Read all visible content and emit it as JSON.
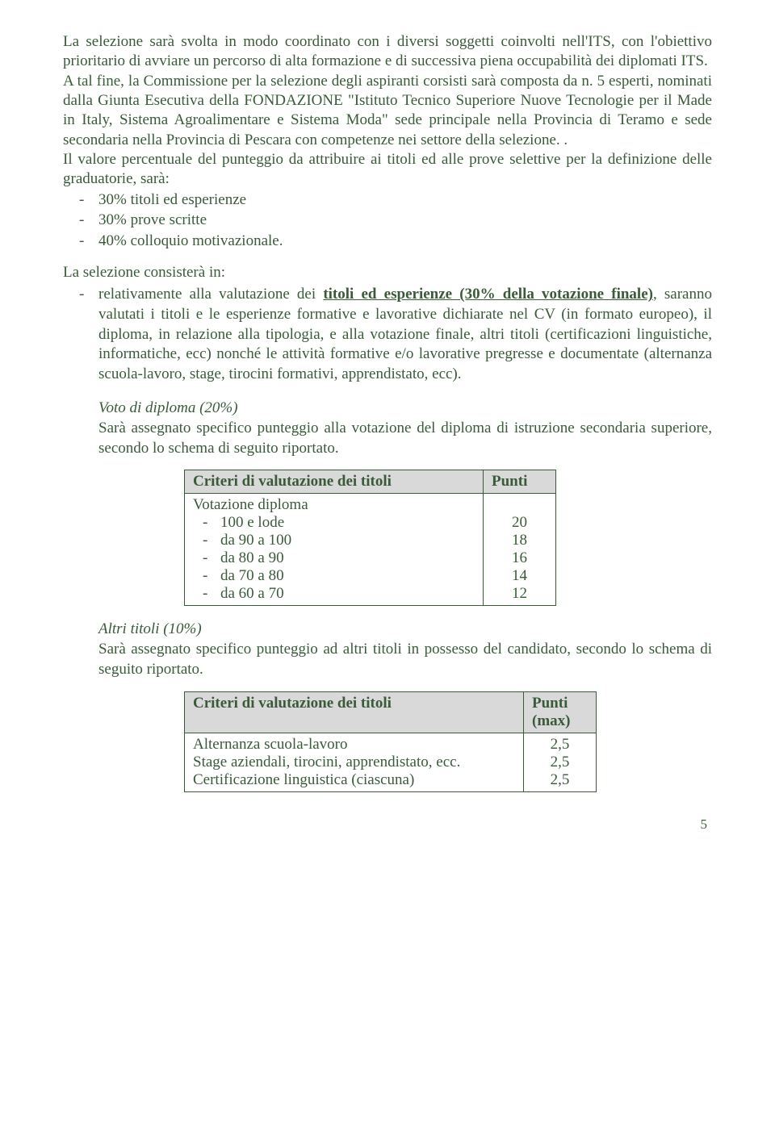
{
  "colors": {
    "text": "#3a5a3a",
    "background": "#ffffff",
    "table_header_bg": "#d9d9d9",
    "table_border": "#3a5a3a"
  },
  "typography": {
    "family": "Garamond, Georgia, 'Times New Roman', serif",
    "body_size_pt": 14,
    "line_height": 1.28
  },
  "para1": "La selezione sarà svolta in modo coordinato con i diversi soggetti coinvolti nell'ITS, con l'obiettivo prioritario di avviare un percorso di alta formazione e di successiva piena occupabilità dei diplomati ITS.",
  "para2": "A tal fine, la Commissione per la selezione degli aspiranti corsisti sarà composta da n. 5 esperti, nominati dalla Giunta Esecutiva della FONDAZIONE \"Istituto Tecnico Superiore Nuove Tecnologie per il Made in Italy, Sistema Agroalimentare e Sistema Moda\" sede principale nella Provincia di Teramo e sede secondaria nella Provincia di Pescara con competenze nei settore della selezione. .",
  "para3": "Il valore percentuale del punteggio da attribuire ai titoli ed alle prove selettive per la definizione delle graduatorie, sarà:",
  "weights": [
    "30% titoli ed esperienze",
    "30% prove scritte",
    "40% colloquio motivazionale."
  ],
  "lead2": "La selezione consisterà in:",
  "bullet_titoli": {
    "prefix": "relativamente alla valutazione dei ",
    "underline": "titoli ed esperienze (30% della votazione finale)",
    "rest": ", saranno valutati i titoli e le esperienze formative e lavorative dichiarate nel CV (in formato europeo), il  diploma, in relazione alla tipologia, e alla votazione finale,  altri titoli (certificazioni linguistiche, informatiche, ecc) nonché le attività formative e/o lavorative pregresse e documentate (alternanza scuola-lavoro, stage, tirocini formativi, apprendistato, ecc)."
  },
  "voto_head": "Voto di diploma (20%)",
  "voto_para": "Sarà assegnato specifico punteggio alla votazione del diploma di istruzione secondaria superiore, secondo lo schema di seguito riportato.",
  "table1": {
    "header_left": "Criteri di valutazione dei titoli",
    "header_right": "Punti",
    "row_title": "Votazione diploma",
    "rows": [
      {
        "label": "100 e lode",
        "points": "20"
      },
      {
        "label": "da 90 a 100",
        "points": "18"
      },
      {
        "label": "da 80 a 90",
        "points": "16"
      },
      {
        "label": "da 70 a 80",
        "points": "14"
      },
      {
        "label": "da 60 a 70",
        "points": "12"
      }
    ]
  },
  "altri_head": "Altri titoli (10%)",
  "altri_para": "Sarà assegnato specifico punteggio ad altri titoli in possesso del candidato, secondo lo schema di seguito riportato.",
  "table2": {
    "header_left": "Criteri di valutazione dei titoli",
    "header_right": "Punti (max)",
    "rows": [
      {
        "label": "Alternanza scuola-lavoro",
        "points": "2,5"
      },
      {
        "label": "Stage aziendali, tirocini, apprendistato, ecc.",
        "points": "2,5"
      },
      {
        "label": "Certificazione linguistica (ciascuna)",
        "points": "2,5"
      }
    ]
  },
  "page_number": "5"
}
